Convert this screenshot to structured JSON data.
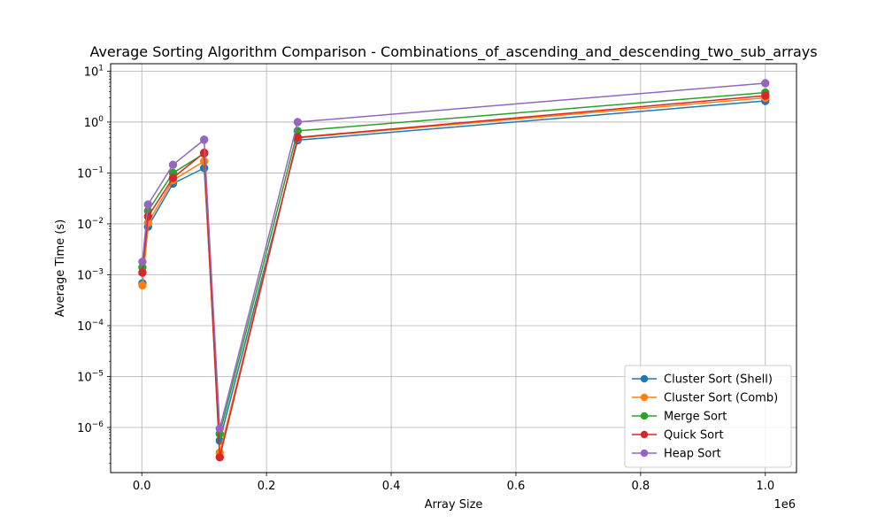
{
  "chart_data": {
    "type": "line",
    "title": "Average Sorting Algorithm Comparison - Combinations_of_ascending_and_descending_two_sub_arrays",
    "xlabel": "Array Size",
    "ylabel": "Average Time (s)",
    "x_offset_label": "1e6",
    "x_scale_factor": 1000000,
    "xlim": [
      -50000,
      1050000
    ],
    "ylim": [
      1.3e-07,
      14
    ],
    "y_scale": "log",
    "grid": true,
    "legend_position": "lower-right",
    "x": [
      1000,
      10000,
      50000,
      100000,
      125000,
      250000,
      1000000
    ],
    "x_ticks": [
      0,
      200000,
      400000,
      600000,
      800000,
      1000000
    ],
    "x_tick_labels": [
      "0.0",
      "0.2",
      "0.4",
      "0.6",
      "0.8",
      "1.0"
    ],
    "y_ticks": [
      1e-06,
      1e-05,
      0.0001,
      0.001,
      0.01,
      0.1,
      1,
      10
    ],
    "y_tick_labels": [
      {
        "base": "10",
        "exp": "−6"
      },
      {
        "base": "10",
        "exp": "−5"
      },
      {
        "base": "10",
        "exp": "−4"
      },
      {
        "base": "10",
        "exp": "−3"
      },
      {
        "base": "10",
        "exp": "−2"
      },
      {
        "base": "10",
        "exp": "−1"
      },
      {
        "base": "10",
        "exp": "0"
      },
      {
        "base": "10",
        "exp": "1"
      }
    ],
    "series": [
      {
        "name": "Cluster Sort (Shell)",
        "color": "#1f77b4",
        "values": [
          0.00068,
          0.0088,
          0.062,
          0.125,
          5.5e-07,
          0.44,
          2.6
        ]
      },
      {
        "name": "Cluster Sort (Comb)",
        "color": "#ff7f0e",
        "values": [
          0.00062,
          0.0105,
          0.072,
          0.17,
          3.2e-07,
          0.49,
          3.0
        ]
      },
      {
        "name": "Merge Sort",
        "color": "#2ca02c",
        "values": [
          0.0014,
          0.018,
          0.1,
          0.24,
          7.5e-07,
          0.67,
          3.8
        ]
      },
      {
        "name": "Quick Sort",
        "color": "#d62728",
        "values": [
          0.0011,
          0.014,
          0.08,
          0.25,
          2.6e-07,
          0.5,
          3.3
        ]
      },
      {
        "name": "Heap Sort",
        "color": "#9467bd",
        "values": [
          0.0018,
          0.024,
          0.145,
          0.45,
          9.5e-07,
          1.0,
          5.8
        ]
      }
    ]
  }
}
